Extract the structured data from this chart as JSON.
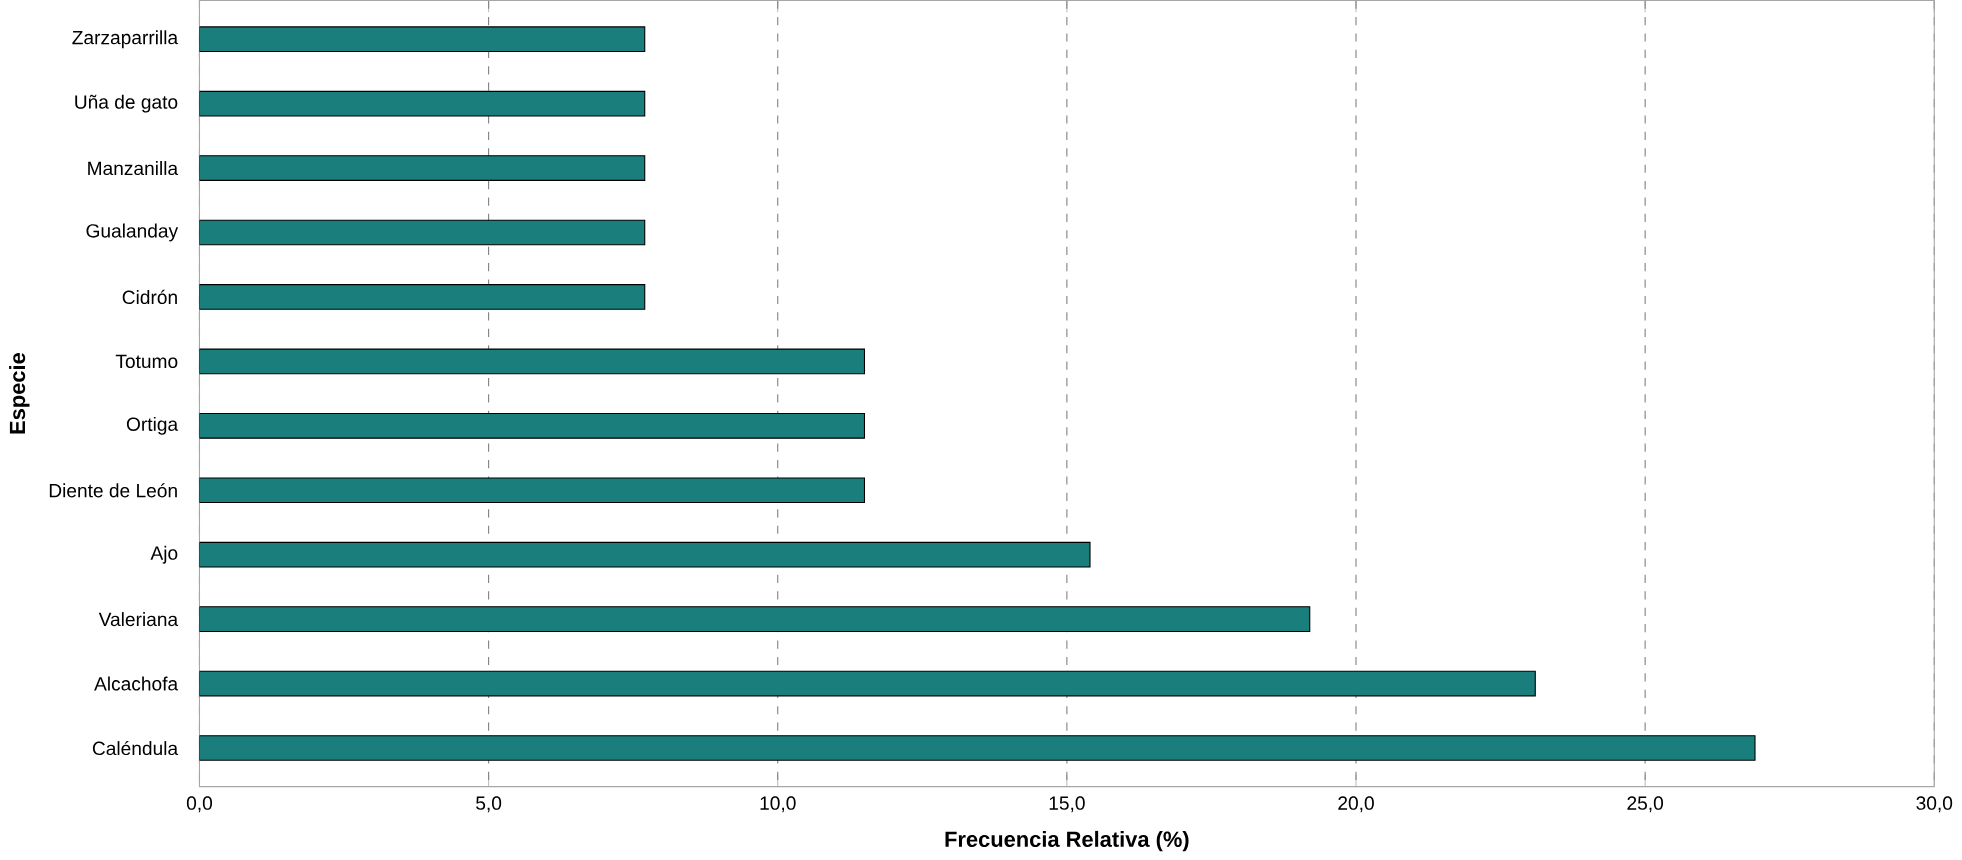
{
  "chart_data": {
    "type": "bar",
    "orientation": "horizontal",
    "xlabel": "Frecuencia Relativa (%)",
    "ylabel": "Especie",
    "categories": [
      "Zarzaparrilla",
      "Uña de gato",
      "Manzanilla",
      "Gualanday",
      "Cidrón",
      "Totumo",
      "Ortiga",
      "Diente de León",
      "Ajo",
      "Valeriana",
      "Alcachofa",
      "Caléndula"
    ],
    "values": [
      7.7,
      7.7,
      7.7,
      7.7,
      7.7,
      11.5,
      11.5,
      11.5,
      15.4,
      19.2,
      23.1,
      26.9
    ],
    "color": "#1a7f7c",
    "xlim": [
      0,
      30
    ],
    "xticks": [
      {
        "value": 0,
        "label": "0,0"
      },
      {
        "value": 5,
        "label": "5,0"
      },
      {
        "value": 10,
        "label": "10,0"
      },
      {
        "value": 15,
        "label": "15,0"
      },
      {
        "value": 20,
        "label": "20,0"
      },
      {
        "value": 25,
        "label": "25,0"
      },
      {
        "value": 30,
        "label": "30,0"
      }
    ],
    "grid": "x"
  }
}
